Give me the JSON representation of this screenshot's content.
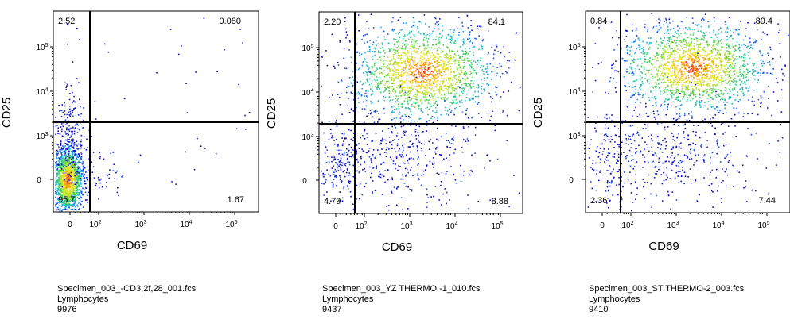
{
  "chart_data": [
    {
      "type": "scatter",
      "xlabel": "CD69",
      "ylabel": "CD25",
      "x_ticks": [
        "0",
        "10^2",
        "10^3",
        "10^4",
        "10^5"
      ],
      "y_ticks": [
        "0",
        "10^3",
        "10^4",
        "10^5"
      ],
      "scale": "biexponential",
      "quadrants": {
        "upper_left": "2.52",
        "upper_right": "0.080",
        "lower_left": "95.7",
        "lower_right": "1.67"
      },
      "caption": {
        "file": "Specimen_003_-CD3,2f,28_001.fcs",
        "population": "Lymphocytes",
        "events": "9976"
      }
    },
    {
      "type": "scatter",
      "xlabel": "CD69",
      "ylabel": "CD25",
      "x_ticks": [
        "0",
        "10^2",
        "10^3",
        "10^4",
        "10^5"
      ],
      "y_ticks": [
        "0",
        "10^3",
        "10^4",
        "10^5"
      ],
      "scale": "biexponential",
      "quadrants": {
        "upper_left": "2.20",
        "upper_right": "84.1",
        "lower_left": "4.79",
        "lower_right": "8.88"
      },
      "caption": {
        "file": "Specimen_003_YZ THERMO -1_010.fcs",
        "population": "Lymphocytes",
        "events": "9437"
      }
    },
    {
      "type": "scatter",
      "xlabel": "CD69",
      "ylabel": "CD25",
      "x_ticks": [
        "0",
        "10^2",
        "10^3",
        "10^4",
        "10^5"
      ],
      "y_ticks": [
        "0",
        "10^3",
        "10^4",
        "10^5"
      ],
      "scale": "biexponential",
      "quadrants": {
        "upper_left": "0.84",
        "upper_right": "89.4",
        "lower_left": "2.36",
        "lower_right": "7.44"
      },
      "caption": {
        "file": "Specimen_003_ST THERMO-2_003.fcs",
        "population": "Lymphocytes",
        "events": "9410"
      }
    }
  ]
}
